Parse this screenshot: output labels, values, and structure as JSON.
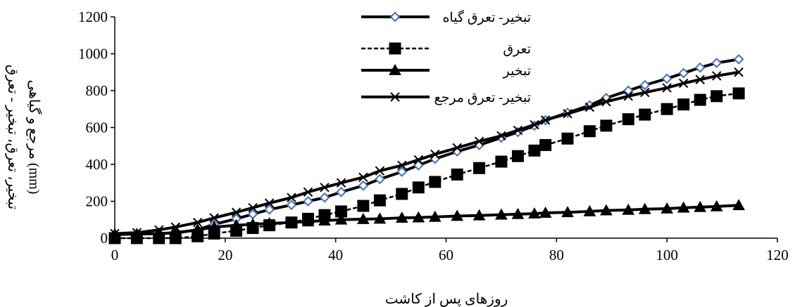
{
  "chart_data": {
    "type": "line",
    "title": "",
    "xlabel": "روزهای پس از کاشت",
    "ylabel_lines": [
      "تبخیر، تعرق، تبخیر - تعرق",
      "مرجع و گیاهی (mm)"
    ],
    "xlim": [
      0,
      120
    ],
    "ylim": [
      0,
      1200
    ],
    "x_ticks": [
      0,
      20,
      40,
      60,
      80,
      100,
      120
    ],
    "y_ticks": [
      0,
      200,
      400,
      600,
      800,
      1000,
      1200
    ],
    "grid": false,
    "legend_position": "top-center",
    "series": [
      {
        "name": "تبخیر- تعرق گیاه",
        "marker": "diamond",
        "line_style": "solid",
        "color": "#000000",
        "marker_fill": "#ffffff",
        "marker_stroke": "#4a6fb5",
        "x": [
          0,
          4,
          8,
          11,
          15,
          18,
          22,
          25,
          28,
          32,
          35,
          38,
          41,
          45,
          48,
          52,
          55,
          58,
          62,
          66,
          70,
          73,
          76,
          78,
          82,
          86,
          89,
          93,
          96,
          100,
          103,
          106,
          109,
          113
        ],
        "values": [
          20,
          22,
          25,
          28,
          45,
          75,
          105,
          130,
          155,
          180,
          200,
          220,
          250,
          285,
          320,
          360,
          395,
          430,
          470,
          505,
          545,
          575,
          610,
          640,
          680,
          720,
          760,
          800,
          830,
          865,
          895,
          925,
          950,
          970
        ]
      },
      {
        "name": "تعرق",
        "marker": "square",
        "line_style": "dashed",
        "color": "#000000",
        "marker_fill": "#000000",
        "marker_stroke": "#000000",
        "x": [
          0,
          4,
          8,
          11,
          15,
          18,
          22,
          25,
          28,
          32,
          35,
          38,
          41,
          45,
          48,
          52,
          55,
          58,
          62,
          66,
          70,
          73,
          76,
          78,
          82,
          86,
          89,
          93,
          96,
          100,
          103,
          106,
          109,
          113
        ],
        "values": [
          0,
          0,
          0,
          0,
          10,
          25,
          40,
          55,
          70,
          85,
          105,
          125,
          145,
          175,
          205,
          240,
          275,
          305,
          345,
          380,
          415,
          445,
          475,
          505,
          540,
          580,
          610,
          645,
          670,
          700,
          725,
          750,
          770,
          785
        ]
      },
      {
        "name": "تبخیر",
        "marker": "triangle",
        "line_style": "solid",
        "color": "#000000",
        "marker_fill": "#000000",
        "marker_stroke": "#000000",
        "x": [
          0,
          4,
          8,
          11,
          15,
          18,
          22,
          25,
          28,
          32,
          35,
          38,
          41,
          45,
          48,
          52,
          55,
          58,
          62,
          66,
          70,
          73,
          76,
          78,
          82,
          86,
          89,
          93,
          96,
          100,
          103,
          106,
          109,
          113
        ],
        "values": [
          20,
          22,
          25,
          30,
          45,
          60,
          70,
          75,
          80,
          85,
          90,
          95,
          100,
          103,
          105,
          110,
          112,
          115,
          120,
          123,
          127,
          130,
          133,
          137,
          140,
          145,
          150,
          153,
          157,
          160,
          165,
          168,
          172,
          178
        ]
      },
      {
        "name": "تبخیر- تعرق مرجع",
        "marker": "x",
        "line_style": "solid",
        "color": "#000000",
        "marker_fill": "none",
        "marker_stroke": "#000000",
        "x": [
          0,
          4,
          8,
          11,
          15,
          18,
          22,
          25,
          28,
          32,
          35,
          38,
          41,
          45,
          48,
          52,
          55,
          58,
          62,
          66,
          70,
          73,
          76,
          78,
          82,
          86,
          89,
          93,
          96,
          100,
          103,
          106,
          109,
          113
        ],
        "values": [
          25,
          30,
          45,
          60,
          85,
          110,
          140,
          165,
          190,
          220,
          250,
          275,
          300,
          330,
          365,
          395,
          425,
          455,
          490,
          525,
          555,
          585,
          615,
          640,
          675,
          710,
          740,
          770,
          790,
          815,
          840,
          860,
          880,
          900
        ]
      }
    ]
  }
}
